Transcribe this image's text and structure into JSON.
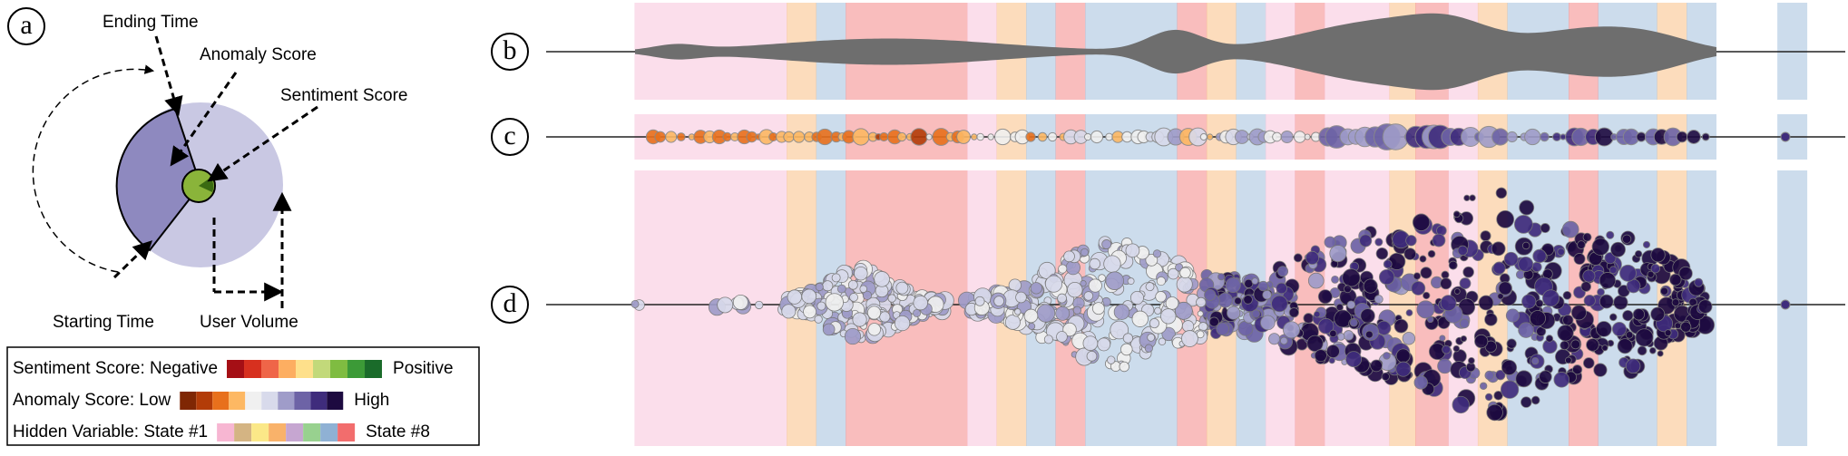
{
  "panels": [
    "a",
    "b",
    "c",
    "d"
  ],
  "annotations": {
    "ending_time": "Ending Time",
    "anomaly_score": "Anomaly Score",
    "sentiment_score": "Sentiment Score",
    "starting_time": "Starting Time",
    "user_volume": "User Volume"
  },
  "legend": [
    {
      "label": "Sentiment Score: Negative",
      "end_label": "Positive",
      "colors": [
        "#a50f15",
        "#d7301f",
        "#ef6548",
        "#fdae61",
        "#fee08b",
        "#c2d97a",
        "#7fbc41",
        "#3c9a37",
        "#1a6b2a"
      ]
    },
    {
      "label": "Anomaly Score: Low",
      "end_label": "High",
      "colors": [
        "#7f2704",
        "#b33c08",
        "#e8701c",
        "#fdb863",
        "#f0f0f0",
        "#d8daeb",
        "#9f9cc9",
        "#6d63a6",
        "#3f2c7c",
        "#1d0a40"
      ]
    },
    {
      "label": "Hidden Variable: State #1",
      "end_label": "State #8",
      "colors": [
        "#f7b6d2",
        "#d4b483",
        "#fbe888",
        "#f9b26a",
        "#c6a6d1",
        "#98d18f",
        "#8fb1d4",
        "#f26d6d"
      ]
    }
  ]
}
